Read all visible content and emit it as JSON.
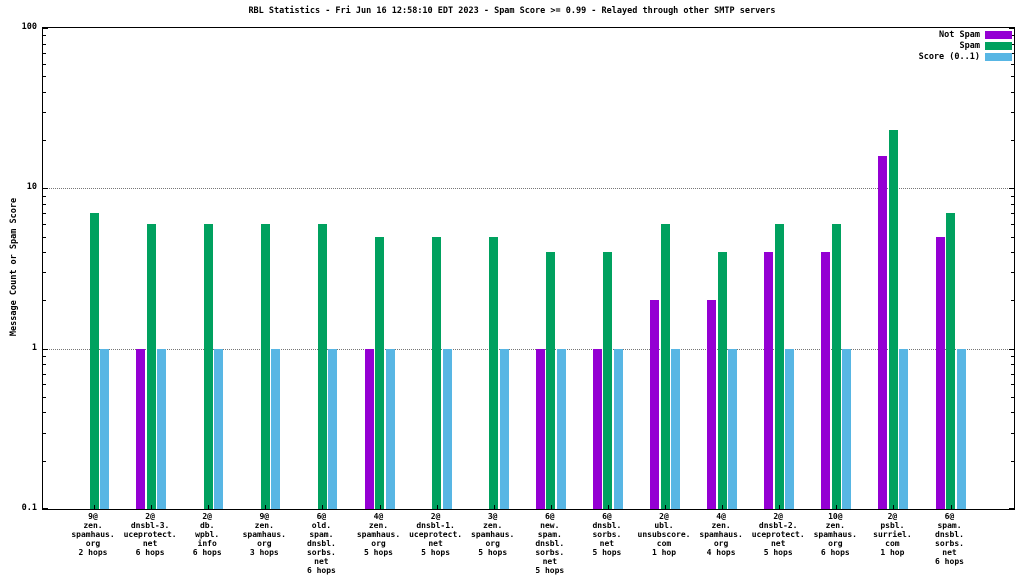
{
  "title": "RBL Statistics - Fri Jun 16 12:58:10 EDT 2023 - Spam Score >= 0.99 - Relayed through other SMTP servers",
  "y_axis": {
    "label": "Message Count or Spam Score",
    "ticks": [
      {
        "label": "100",
        "value": 100
      },
      {
        "label": "10",
        "value": 10
      },
      {
        "label": "1",
        "value": 1
      },
      {
        "label": "0.1",
        "value": 0.1
      }
    ]
  },
  "colors": {
    "not_spam": "#9400d3",
    "spam": "#00a15f",
    "score": "#58b6e4",
    "grid": "#777777",
    "axis": "#000000"
  },
  "chart_data": {
    "type": "bar",
    "yscale": "log",
    "ylim": [
      0.1,
      100
    ],
    "grid": "horizontal-dotted",
    "legend_position": "top-right",
    "title": "RBL Statistics - Fri Jun 16 12:58:10 EDT 2023 - Spam Score >= 0.99 - Relayed through other SMTP servers",
    "ylabel": "Message Count or Spam Score",
    "categories": [
      [
        "9@",
        "zen.",
        "spamhaus.",
        "org",
        "2 hops"
      ],
      [
        "2@",
        "dnsbl-3.",
        "uceprotect.",
        "net",
        "6 hops"
      ],
      [
        "2@",
        "db.",
        "wpbl.",
        "info",
        "6 hops"
      ],
      [
        "9@",
        "zen.",
        "spamhaus.",
        "org",
        "3 hops"
      ],
      [
        "6@",
        "old.",
        "spam.",
        "dnsbl.",
        "sorbs.",
        "net",
        "6 hops"
      ],
      [
        "4@",
        "zen.",
        "spamhaus.",
        "org",
        "5 hops"
      ],
      [
        "2@",
        "dnsbl-1.",
        "uceprotect.",
        "net",
        "5 hops"
      ],
      [
        "3@",
        "zen.",
        "spamhaus.",
        "org",
        "5 hops"
      ],
      [
        "6@",
        "new.",
        "spam.",
        "dnsbl.",
        "sorbs.",
        "net",
        "5 hops"
      ],
      [
        "6@",
        "dnsbl.",
        "sorbs.",
        "net",
        "5 hops"
      ],
      [
        "2@",
        "ubl.",
        "unsubscore.",
        "com",
        "1 hop"
      ],
      [
        "4@",
        "zen.",
        "spamhaus.",
        "org",
        "4 hops"
      ],
      [
        "2@",
        "dnsbl-2.",
        "uceprotect.",
        "net",
        "5 hops"
      ],
      [
        "10@",
        "zen.",
        "spamhaus.",
        "org",
        "6 hops"
      ],
      [
        "2@",
        "psbl.",
        "surriel.",
        "com",
        "1 hop"
      ],
      [
        "6@",
        "spam.",
        "dnsbl.",
        "sorbs.",
        "net",
        "6 hops"
      ]
    ],
    "series": [
      {
        "name": "Not Spam",
        "color": "#9400d3",
        "values": [
          0,
          1,
          0,
          0,
          0,
          1,
          0,
          0,
          1,
          1,
          2,
          2,
          4,
          4,
          16,
          5
        ]
      },
      {
        "name": "Spam",
        "color": "#00a15f",
        "values": [
          7,
          6,
          6,
          6,
          6,
          5,
          5,
          5,
          4,
          4,
          6,
          4,
          6,
          6,
          23,
          7
        ]
      },
      {
        "name": "Score (0..1)",
        "color": "#58b6e4",
        "values": [
          0.99,
          0.99,
          0.99,
          0.99,
          0.99,
          0.99,
          0.99,
          0.99,
          0.99,
          0.99,
          0.99,
          0.99,
          0.99,
          0.99,
          0.99,
          0.99
        ]
      }
    ]
  }
}
